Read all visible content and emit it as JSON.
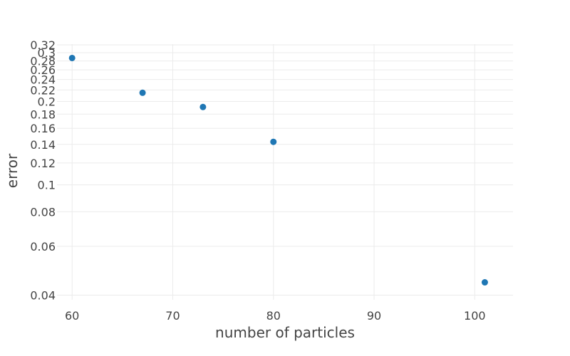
{
  "chart_data": {
    "type": "scatter",
    "title": "",
    "xlabel": "number of particles",
    "ylabel": "error",
    "x_scale": "linear",
    "y_scale": "log",
    "xlim": [
      58.5,
      103.8
    ],
    "ylim": [
      0.0385,
      0.322
    ],
    "x_ticks": [
      60,
      70,
      80,
      90,
      100
    ],
    "y_ticks": [
      0.04,
      0.06,
      0.08,
      0.1,
      0.12,
      0.14,
      0.16,
      0.18,
      0.2,
      0.22,
      0.24,
      0.26,
      0.28,
      0.3,
      0.32
    ],
    "x_tick_labels": [
      "60",
      "70",
      "80",
      "90",
      "100"
    ],
    "y_tick_labels": [
      "0.04",
      "0.06",
      "0.08",
      "0.1",
      "0.12",
      "0.14",
      "0.16",
      "0.18",
      "0.2",
      "0.22",
      "0.24",
      "0.26",
      "0.28",
      "0.3",
      "0.32"
    ],
    "grid": true,
    "legend": "none",
    "marker_color": "#1f77b4",
    "points": [
      {
        "x": 60,
        "y": 0.287
      },
      {
        "x": 67,
        "y": 0.215
      },
      {
        "x": 73,
        "y": 0.191
      },
      {
        "x": 80,
        "y": 0.143
      },
      {
        "x": 101,
        "y": 0.0445
      }
    ]
  }
}
